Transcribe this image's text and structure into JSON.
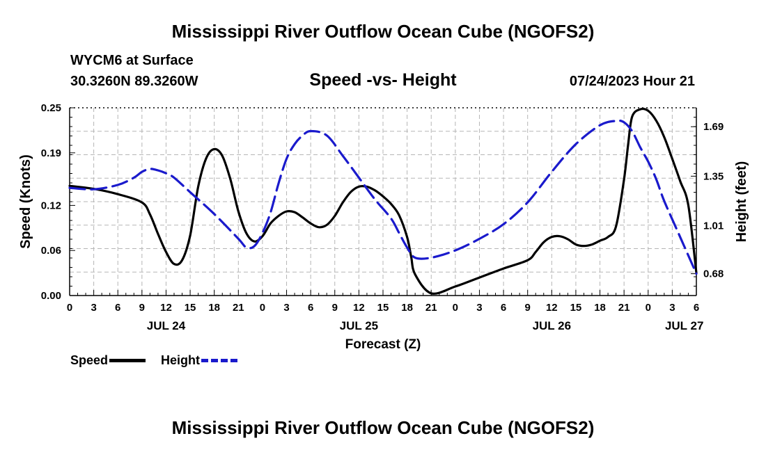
{
  "page": {
    "title_top": "Mississippi River Outflow Ocean Cube (NGOFS2)",
    "title_bottom": "Mississippi River Outflow Ocean Cube (NGOFS2)",
    "station": "WYCM6 at Surface",
    "coords": "30.3260N  89.3260W",
    "subtitle": "Speed -vs- Height",
    "datetime": "07/24/2023 Hour 21"
  },
  "chart_data": {
    "type": "line",
    "title": "Speed -vs- Height",
    "xlabel": "Forecast (Z)",
    "ylabel": "Speed (Knots)",
    "y2label": "Height (feet)",
    "x_unit": "forecast hours from JUL 24 00Z",
    "xlim": [
      0,
      78
    ],
    "ylim": [
      0,
      0.25
    ],
    "y2lim": [
      0.53,
      1.82
    ],
    "x_ticks": [
      0,
      3,
      6,
      9,
      12,
      15,
      18,
      21,
      24,
      27,
      30,
      33,
      36,
      39,
      42,
      45,
      48,
      51,
      54,
      57,
      60,
      63,
      66,
      69,
      72,
      75,
      78
    ],
    "x_tick_labels": [
      "0",
      "3",
      "6",
      "9",
      "12",
      "15",
      "18",
      "21",
      "0",
      "3",
      "6",
      "9",
      "12",
      "15",
      "18",
      "21",
      "0",
      "3",
      "6",
      "9",
      "12",
      "15",
      "18",
      "21",
      "0",
      "3",
      "6"
    ],
    "date_labels": [
      {
        "x": 12,
        "label": "JUL 24"
      },
      {
        "x": 36,
        "label": "JUL 25"
      },
      {
        "x": 60,
        "label": "JUL 26"
      },
      {
        "x": 76.5,
        "label": "JUL 27"
      }
    ],
    "y_ticks": [
      0.0,
      0.06,
      0.12,
      0.19,
      0.25
    ],
    "y_tick_labels": [
      "0.00",
      "0.06",
      "0.12",
      "0.19",
      "0.25"
    ],
    "y2_ticks": [
      0.68,
      1.01,
      1.35,
      1.69
    ],
    "y2_tick_labels": [
      "0.68",
      "1.01",
      "1.35",
      "1.69"
    ],
    "series": [
      {
        "name": "Speed",
        "axis": "left",
        "color": "#000000",
        "dash": "solid",
        "x": [
          0,
          3,
          6,
          9,
          10,
          11,
          12,
          13,
          14,
          15,
          16,
          17,
          18,
          19,
          20,
          21,
          22,
          23,
          24,
          25,
          26,
          27,
          28,
          29,
          30,
          31,
          32,
          33,
          34,
          35,
          36,
          37,
          38,
          39,
          40,
          41,
          42,
          42.5,
          43,
          45,
          48,
          51,
          54,
          57,
          58,
          59,
          60,
          61,
          62,
          63,
          64,
          65,
          66,
          67,
          68,
          69,
          69.5,
          70,
          71,
          72,
          73,
          74,
          75,
          76,
          77,
          78
        ],
        "values": [
          0.146,
          0.142,
          0.135,
          0.124,
          0.108,
          0.082,
          0.058,
          0.042,
          0.047,
          0.08,
          0.145,
          0.183,
          0.195,
          0.186,
          0.155,
          0.112,
          0.083,
          0.072,
          0.079,
          0.096,
          0.106,
          0.112,
          0.111,
          0.104,
          0.096,
          0.091,
          0.094,
          0.106,
          0.124,
          0.138,
          0.145,
          0.145,
          0.14,
          0.132,
          0.122,
          0.107,
          0.078,
          0.052,
          0.028,
          0.003,
          0.012,
          0.024,
          0.036,
          0.047,
          0.058,
          0.071,
          0.078,
          0.079,
          0.075,
          0.068,
          0.066,
          0.068,
          0.073,
          0.078,
          0.092,
          0.155,
          0.2,
          0.238,
          0.248,
          0.246,
          0.233,
          0.211,
          0.182,
          0.152,
          0.12,
          0.03
        ]
      },
      {
        "name": "Height",
        "axis": "right",
        "color": "#1a1acc",
        "dash": "dashed",
        "x": [
          0,
          3,
          6,
          8,
          9,
          10,
          11,
          12,
          13,
          15,
          18,
          21,
          22,
          23,
          24,
          25,
          26,
          27,
          28,
          29,
          30,
          32,
          34,
          36,
          38,
          40,
          41,
          42,
          43,
          45,
          48,
          51,
          54,
          57,
          60,
          63,
          66,
          68,
          69,
          70,
          71,
          72,
          73,
          74,
          76,
          78
        ],
        "values": [
          1.27,
          1.26,
          1.29,
          1.34,
          1.38,
          1.4,
          1.39,
          1.37,
          1.34,
          1.24,
          1.09,
          0.92,
          0.86,
          0.87,
          0.96,
          1.1,
          1.3,
          1.47,
          1.57,
          1.63,
          1.66,
          1.63,
          1.49,
          1.34,
          1.19,
          1.06,
          0.96,
          0.86,
          0.79,
          0.79,
          0.84,
          0.92,
          1.02,
          1.17,
          1.38,
          1.57,
          1.7,
          1.73,
          1.72,
          1.66,
          1.55,
          1.45,
          1.33,
          1.18,
          0.93,
          0.68
        ]
      }
    ],
    "legend": [
      {
        "name": "Speed",
        "style": "solid black"
      },
      {
        "name": "Height",
        "style": "dashed blue"
      }
    ],
    "legend_position": "bottom-left",
    "grid": true
  }
}
